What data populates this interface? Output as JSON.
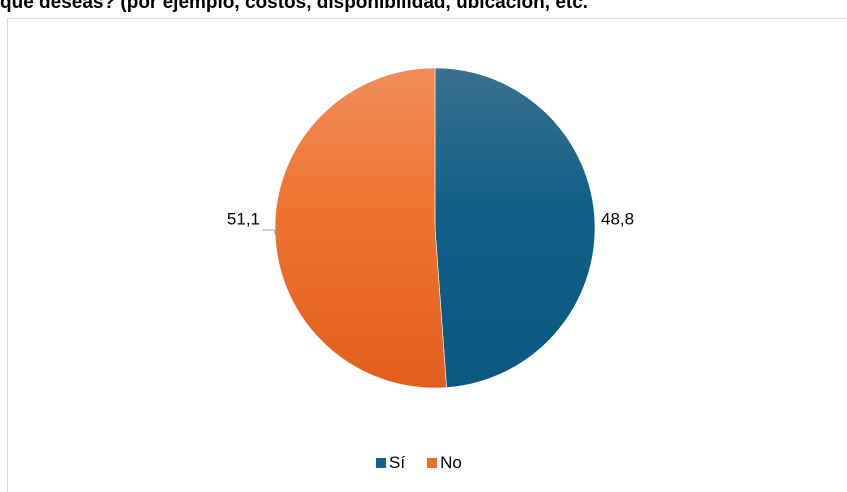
{
  "title": "que deseas? (por ejemplo, costos, disponibilidad, ubicación, etc.",
  "chart_data": {
    "type": "pie",
    "slices": [
      {
        "label": "Sí",
        "value": 48.8,
        "value_label": "48,8",
        "color": "#0f5f86"
      },
      {
        "label": "No",
        "value": 51.1,
        "value_label": "51,1",
        "color": "#ee6f2a"
      }
    ],
    "start_angle": "12 o'clock",
    "direction": "clockwise",
    "legend_position": "bottom"
  }
}
